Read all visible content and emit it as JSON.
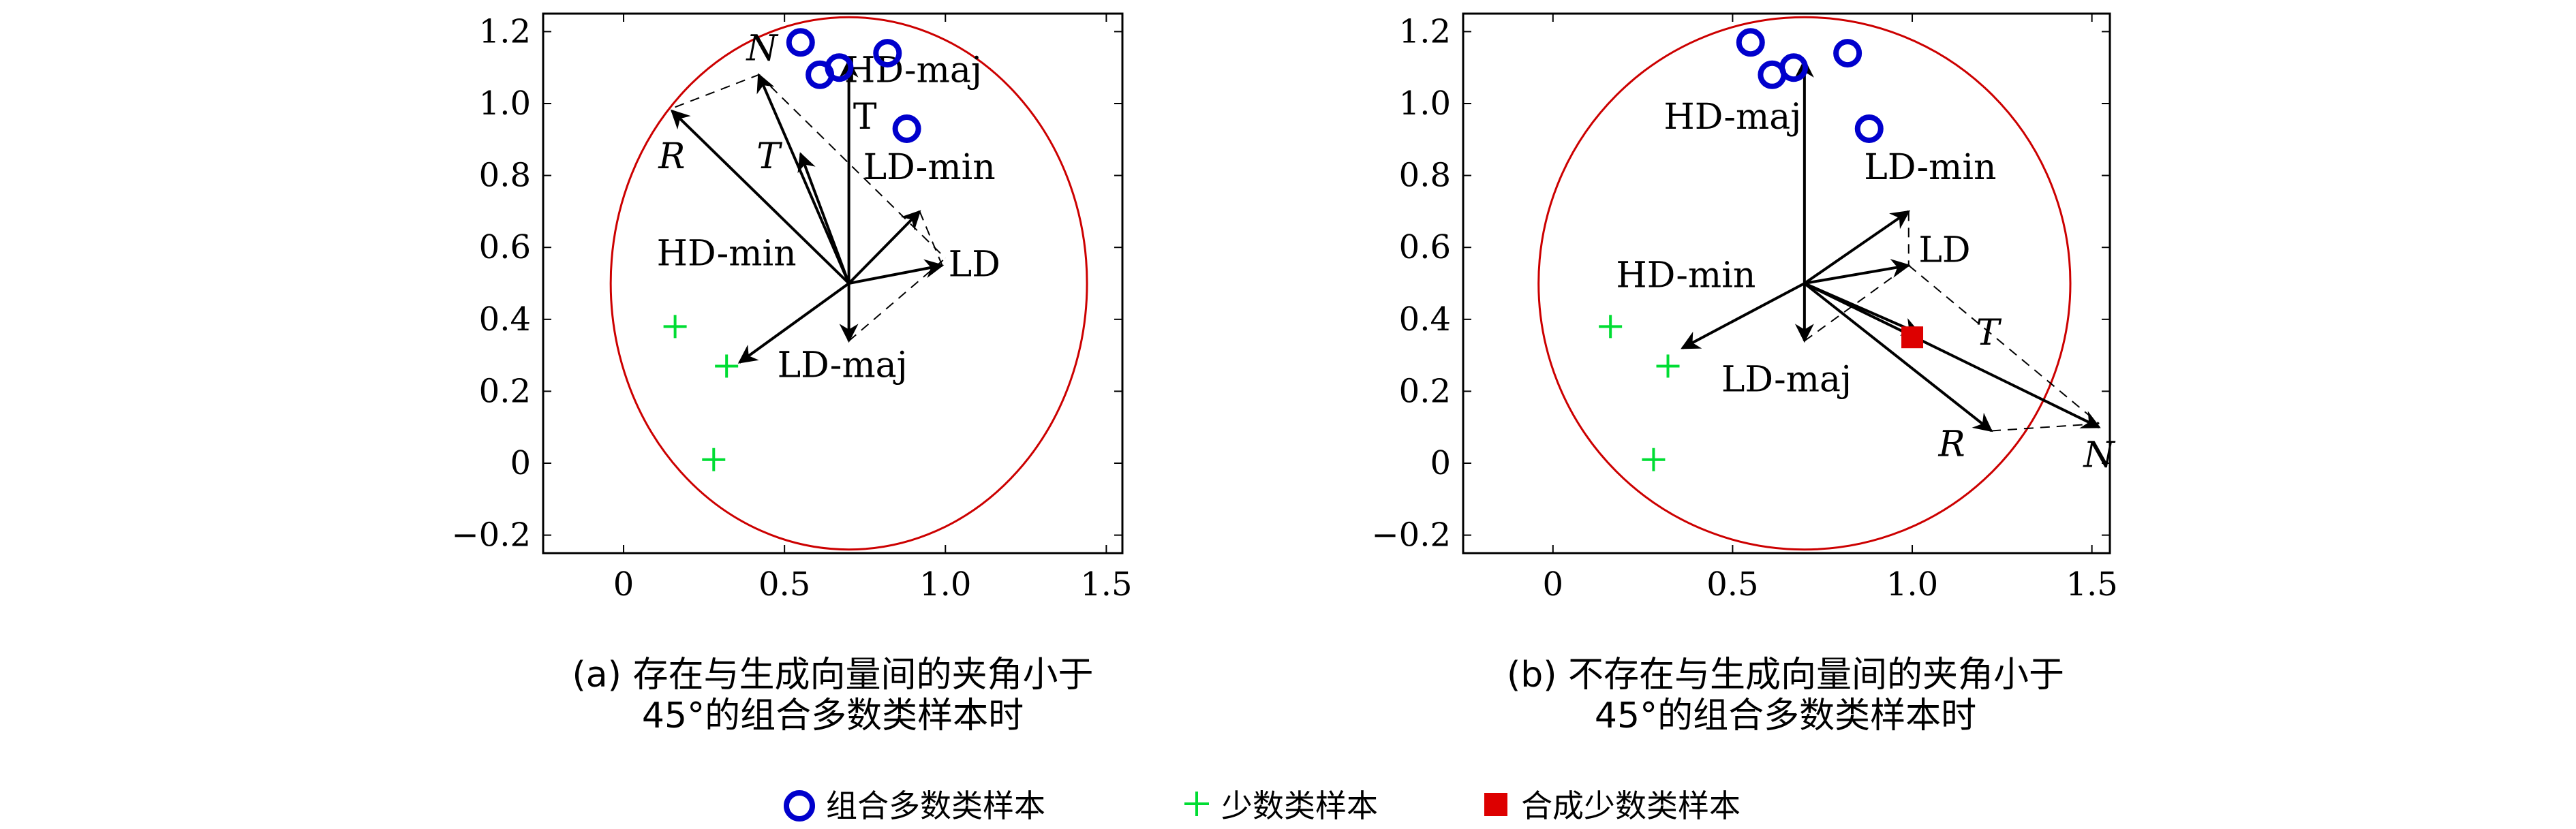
{
  "chart_data": [
    {
      "type": "scatter",
      "panel_id": "a",
      "caption_line1": "(a) 存在与生成向量间的夹角小于",
      "caption_line2": "45°的组合多数类样本时",
      "xlim": [
        -0.25,
        1.55
      ],
      "ylim": [
        -0.25,
        1.25
      ],
      "xticks": [
        "0",
        "0.5",
        "1.0",
        "1.5"
      ],
      "yticks": [
        "−0.2",
        "0",
        "0.2",
        "0.4",
        "0.6",
        "0.8",
        "1.0",
        "1.2"
      ],
      "circle": {
        "cx": 0.7,
        "cy": 0.5,
        "rx": 0.74,
        "ry": 0.74,
        "color": "#cc0000"
      },
      "majority_points": [
        [
          0.55,
          1.17
        ],
        [
          0.61,
          1.08
        ],
        [
          0.67,
          1.1
        ],
        [
          0.82,
          1.14
        ],
        [
          0.88,
          0.93
        ]
      ],
      "minority_points": [
        [
          0.16,
          0.38
        ],
        [
          0.32,
          0.27
        ],
        [
          0.28,
          0.01
        ]
      ],
      "origin": [
        0.7,
        0.5
      ],
      "vectors": [
        {
          "to": [
            0.7,
            1.12
          ],
          "label": "HD-maj",
          "lx": 0.9,
          "ly": 1.06
        },
        {
          "to": [
            0.92,
            0.7
          ],
          "label": "LD-min",
          "lx": 0.95,
          "ly": 0.79
        },
        {
          "to": [
            0.99,
            0.55
          ],
          "label": "LD",
          "lx": 1.09,
          "ly": 0.52
        },
        {
          "to": [
            0.7,
            0.34
          ],
          "label": "LD-maj",
          "lx": 0.68,
          "ly": 0.24
        },
        {
          "to": [
            0.36,
            0.28
          ],
          "label": "HD-min",
          "lx": 0.32,
          "ly": 0.55
        },
        {
          "to": [
            0.15,
            0.98
          ],
          "label": "R",
          "lx": 0.15,
          "ly": 0.82,
          "italic": true
        },
        {
          "to": [
            0.42,
            1.08
          ],
          "label": "N",
          "lx": 0.43,
          "ly": 1.12,
          "italic": true
        },
        {
          "to": [
            0.55,
            0.86
          ],
          "label": "T",
          "lx": 0.45,
          "ly": 0.82,
          "italic": true
        }
      ],
      "dashed": [
        [
          [
            0.16,
            0.99
          ],
          [
            0.42,
            1.08
          ]
        ],
        [
          [
            0.42,
            1.08
          ],
          [
            1.0,
            0.57
          ]
        ],
        [
          [
            0.7,
            0.34
          ],
          [
            1.0,
            0.57
          ]
        ],
        [
          [
            0.92,
            0.7
          ],
          [
            0.99,
            0.55
          ]
        ]
      ],
      "extra_labels": [
        {
          "text": "T",
          "x": 0.75,
          "y": 0.93
        }
      ],
      "synthetic_points": []
    },
    {
      "type": "scatter",
      "panel_id": "b",
      "caption_line1": "(b) 不存在与生成向量间的夹角小于",
      "caption_line2": "45°的组合多数类样本时",
      "xlim": [
        -0.25,
        1.55
      ],
      "ylim": [
        -0.25,
        1.25
      ],
      "xticks": [
        "0",
        "0.5",
        "1.0",
        "1.5"
      ],
      "yticks": [
        "−0.2",
        "0",
        "0.2",
        "0.4",
        "0.6",
        "0.8",
        "1.0",
        "1.2"
      ],
      "circle": {
        "cx": 0.7,
        "cy": 0.5,
        "rx": 0.74,
        "ry": 0.74,
        "color": "#cc0000"
      },
      "majority_points": [
        [
          0.55,
          1.17
        ],
        [
          0.61,
          1.08
        ],
        [
          0.67,
          1.1
        ],
        [
          0.82,
          1.14
        ],
        [
          0.88,
          0.93
        ]
      ],
      "minority_points": [
        [
          0.16,
          0.38
        ],
        [
          0.32,
          0.27
        ],
        [
          0.28,
          0.01
        ]
      ],
      "origin": [
        0.7,
        0.5
      ],
      "vectors": [
        {
          "to": [
            0.7,
            1.12
          ],
          "label": "HD-maj",
          "lx": 0.5,
          "ly": 0.93
        },
        {
          "to": [
            0.99,
            0.7
          ],
          "label": "LD-min",
          "lx": 1.05,
          "ly": 0.79
        },
        {
          "to": [
            0.99,
            0.55
          ],
          "label": "LD",
          "lx": 1.09,
          "ly": 0.56
        },
        {
          "to": [
            0.7,
            0.34
          ],
          "label": "LD-maj",
          "lx": 0.65,
          "ly": 0.2
        },
        {
          "to": [
            0.36,
            0.32
          ],
          "label": "HD-min",
          "lx": 0.37,
          "ly": 0.49
        },
        {
          "to": [
            1.22,
            0.09
          ],
          "label": "R",
          "lx": 1.11,
          "ly": 0.02,
          "italic": true
        },
        {
          "to": [
            1.52,
            0.1
          ],
          "label": "N",
          "lx": 1.52,
          "ly": -0.01,
          "italic": true
        },
        {
          "to": [
            1.02,
            0.36
          ],
          "label": "",
          "lx": 0,
          "ly": 0
        }
      ],
      "dashed": [
        [
          [
            1.22,
            0.09
          ],
          [
            1.52,
            0.11
          ]
        ],
        [
          [
            0.99,
            0.55
          ],
          [
            1.52,
            0.11
          ]
        ],
        [
          [
            0.7,
            0.34
          ],
          [
            0.99,
            0.55
          ]
        ],
        [
          [
            0.99,
            0.7
          ],
          [
            0.99,
            0.55
          ]
        ]
      ],
      "extra_labels": [
        {
          "text": "T",
          "x": 1.21,
          "y": 0.33,
          "italic": true
        }
      ],
      "synthetic_points": [
        [
          1.0,
          0.35
        ]
      ]
    }
  ],
  "legend": {
    "majority_label": "组合多数类样本",
    "minority_label": "少数类样本",
    "synthetic_label": "合成少数类样本",
    "majority_color": "#0000cc",
    "minority_color": "#00dd33",
    "synthetic_color": "#dd0000"
  }
}
